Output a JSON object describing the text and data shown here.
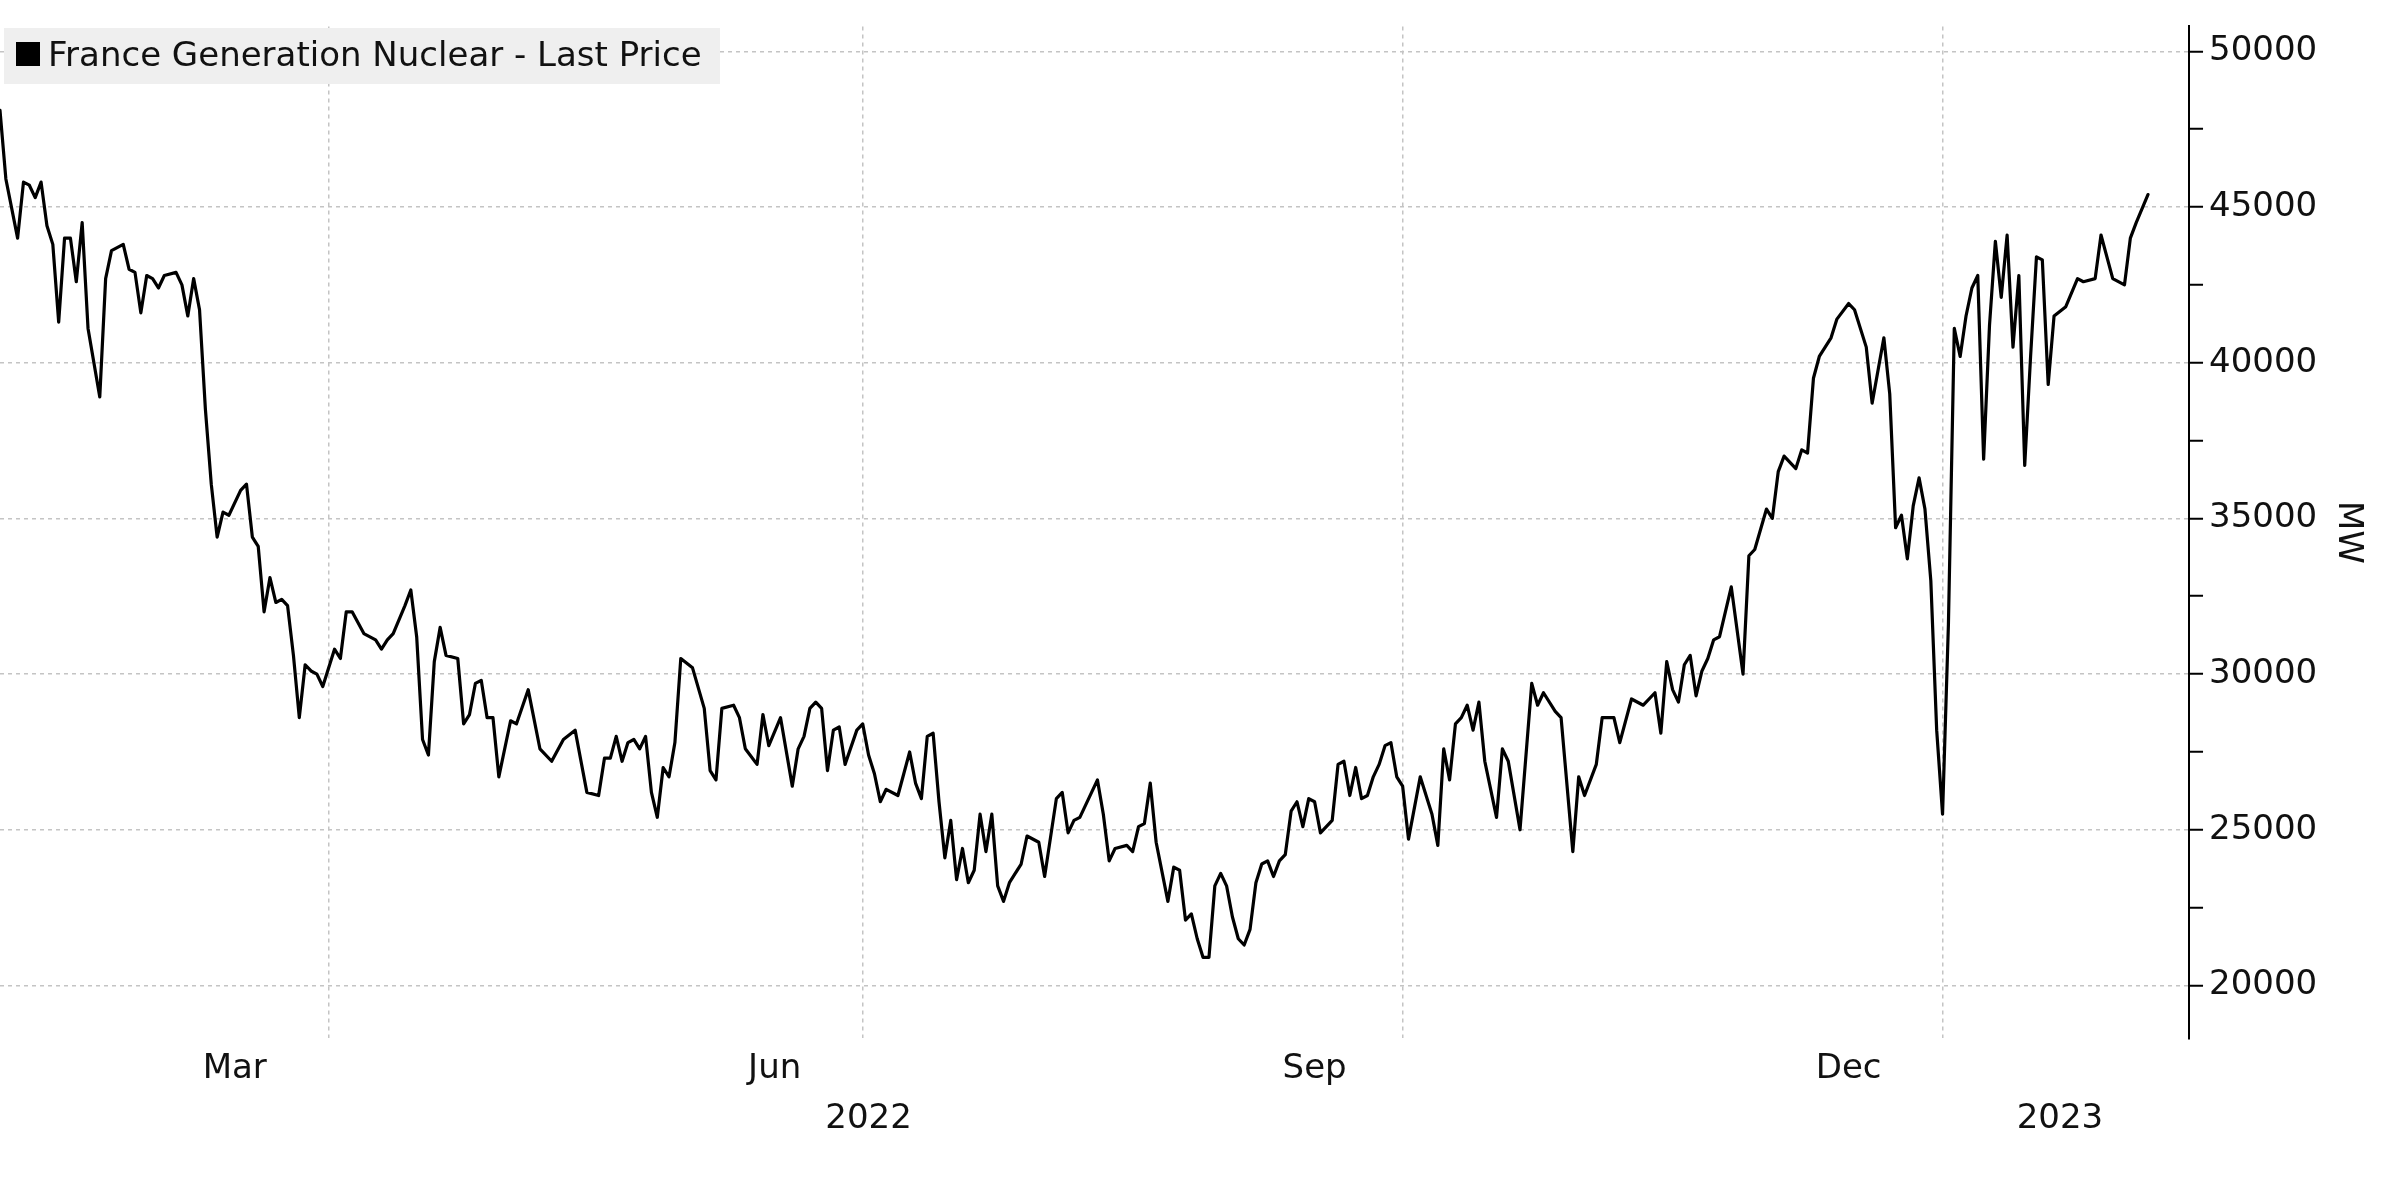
{
  "chart_data": {
    "type": "line",
    "ylabel": "MW",
    "legend": "top left",
    "grid": true,
    "marker": "none",
    "xlim": [
      "2022-02-04",
      "2023-02-12"
    ],
    "xticks": [
      {
        "value": "2022-03-16",
        "label": "Mar"
      },
      {
        "value": "2022-04-01",
        "label": null
      },
      {
        "value": "2022-06-16",
        "label": "Jun"
      },
      {
        "value": "2022-07-01",
        "label": null
      },
      {
        "value": "2022-09-16",
        "label": "Sep"
      },
      {
        "value": "2022-10-01",
        "label": null
      },
      {
        "value": "2022-12-16",
        "label": "Dec"
      },
      {
        "value": "2023-01-01",
        "label": null
      }
    ],
    "x2lim": [
      "2022-02-04",
      "2023-02-12"
    ],
    "x2ticks": [
      {
        "value": "2022-07-02",
        "label": "2022"
      },
      {
        "value": "2023-01-21",
        "label": "2023"
      }
    ],
    "ylim": [
      18300,
      50800
    ],
    "yticks": [
      20000,
      {
        "value": 22500,
        "label": null
      },
      25000,
      {
        "value": 27500,
        "label": null
      },
      30000,
      {
        "value": 32500,
        "label": null
      },
      35000,
      {
        "value": 37500,
        "label": null
      },
      40000,
      {
        "value": 42500,
        "label": null
      },
      45000,
      {
        "value": 47500,
        "label": null
      },
      50000
    ],
    "x": [
      "2022-02-04",
      "2022-02-05",
      "2022-02-07",
      "2022-02-08",
      "2022-02-09",
      "2022-02-10",
      "2022-02-11",
      "2022-02-12",
      "2022-02-13",
      "2022-02-14",
      "2022-02-15",
      "2022-02-16",
      "2022-02-17",
      "2022-02-18",
      "2022-02-19",
      "2022-02-21",
      "2022-02-22",
      "2022-02-23",
      "2022-02-25",
      "2022-02-26",
      "2022-02-27",
      "2022-02-28",
      "2022-03-01",
      "2022-03-02",
      "2022-03-03",
      "2022-03-04",
      "2022-03-06",
      "2022-03-07",
      "2022-03-08",
      "2022-03-09",
      "2022-03-10",
      "2022-03-11",
      "2022-03-12",
      "2022-03-13",
      "2022-03-14",
      "2022-03-15",
      "2022-03-17",
      "2022-03-18",
      "2022-03-19",
      "2022-03-20",
      "2022-03-21",
      "2022-03-22",
      "2022-03-23",
      "2022-03-24",
      "2022-03-25",
      "2022-03-26",
      "2022-03-27",
      "2022-03-28",
      "2022-03-29",
      "2022-03-30",
      "2022-03-31",
      "2022-04-02",
      "2022-04-03",
      "2022-04-04",
      "2022-04-05",
      "2022-04-07",
      "2022-04-09",
      "2022-04-10",
      "2022-04-11",
      "2022-04-12",
      "2022-04-14",
      "2022-04-15",
      "2022-04-16",
      "2022-04-17",
      "2022-04-18",
      "2022-04-19",
      "2022-04-20",
      "2022-04-21",
      "2022-04-23",
      "2022-04-24",
      "2022-04-25",
      "2022-04-26",
      "2022-04-27",
      "2022-04-28",
      "2022-04-29",
      "2022-04-30",
      "2022-05-02",
      "2022-05-03",
      "2022-05-05",
      "2022-05-07",
      "2022-05-09",
      "2022-05-11",
      "2022-05-13",
      "2022-05-15",
      "2022-05-17",
      "2022-05-18",
      "2022-05-19",
      "2022-05-20",
      "2022-05-21",
      "2022-05-22",
      "2022-05-23",
      "2022-05-24",
      "2022-05-25",
      "2022-05-26",
      "2022-05-27",
      "2022-05-28",
      "2022-05-29",
      "2022-05-30",
      "2022-05-31",
      "2022-06-02",
      "2022-06-04",
      "2022-06-05",
      "2022-06-06",
      "2022-06-07",
      "2022-06-09",
      "2022-06-10",
      "2022-06-11",
      "2022-06-13",
      "2022-06-14",
      "2022-06-15",
      "2022-06-17",
      "2022-06-19",
      "2022-06-20",
      "2022-06-21",
      "2022-06-22",
      "2022-06-23",
      "2022-06-24",
      "2022-06-25",
      "2022-06-26",
      "2022-06-27",
      "2022-06-28",
      "2022-06-30",
      "2022-07-01",
      "2022-07-02",
      "2022-07-03",
      "2022-07-04",
      "2022-07-05",
      "2022-07-07",
      "2022-07-08",
      "2022-07-09",
      "2022-07-10",
      "2022-07-11",
      "2022-07-12",
      "2022-07-13",
      "2022-07-14",
      "2022-07-15",
      "2022-07-16",
      "2022-07-17",
      "2022-07-18",
      "2022-07-19",
      "2022-07-20",
      "2022-07-21",
      "2022-07-22",
      "2022-07-23",
      "2022-07-24",
      "2022-07-25",
      "2022-07-26",
      "2022-07-28",
      "2022-07-29",
      "2022-07-31",
      "2022-08-01",
      "2022-08-03",
      "2022-08-04",
      "2022-08-05",
      "2022-08-06",
      "2022-08-07",
      "2022-08-09",
      "2022-08-10",
      "2022-08-11",
      "2022-08-12",
      "2022-08-13",
      "2022-08-15",
      "2022-08-16",
      "2022-08-17",
      "2022-08-18",
      "2022-08-19",
      "2022-08-20",
      "2022-08-22",
      "2022-08-23",
      "2022-08-24",
      "2022-08-25",
      "2022-08-26",
      "2022-08-27",
      "2022-08-28",
      "2022-08-29",
      "2022-08-30",
      "2022-08-31",
      "2022-09-01",
      "2022-09-02",
      "2022-09-03",
      "2022-09-04",
      "2022-09-05",
      "2022-09-06",
      "2022-09-07",
      "2022-09-08",
      "2022-09-09",
      "2022-09-10",
      "2022-09-11",
      "2022-09-12",
      "2022-09-13",
      "2022-09-14",
      "2022-09-15",
      "2022-09-16",
      "2022-09-17",
      "2022-09-19",
      "2022-09-20",
      "2022-09-21",
      "2022-09-22",
      "2022-09-23",
      "2022-09-24",
      "2022-09-25",
      "2022-09-26",
      "2022-09-27",
      "2022-09-28",
      "2022-09-29",
      "2022-09-30",
      "2022-10-01",
      "2022-10-02",
      "2022-10-04",
      "2022-10-06",
      "2022-10-07",
      "2022-10-08",
      "2022-10-09",
      "2022-10-10",
      "2022-10-11",
      "2022-10-12",
      "2022-10-13",
      "2022-10-14",
      "2022-10-15",
      "2022-10-17",
      "2022-10-18",
      "2022-10-19",
      "2022-10-21",
      "2022-10-23",
      "2022-10-24",
      "2022-10-25",
      "2022-10-27",
      "2022-10-28",
      "2022-10-30",
      "2022-10-31",
      "2022-11-01",
      "2022-11-03",
      "2022-11-04",
      "2022-11-06",
      "2022-11-07",
      "2022-11-09",
      "2022-11-11",
      "2022-11-13",
      "2022-11-14",
      "2022-11-15",
      "2022-11-16",
      "2022-11-17",
      "2022-11-18",
      "2022-11-19",
      "2022-11-20",
      "2022-11-21",
      "2022-11-22",
      "2022-11-23",
      "2022-11-24",
      "2022-11-26",
      "2022-11-28",
      "2022-11-29",
      "2022-11-30",
      "2022-12-02",
      "2022-12-03",
      "2022-12-04",
      "2022-12-05",
      "2022-12-07",
      "2022-12-08",
      "2022-12-09",
      "2022-12-10",
      "2022-12-11",
      "2022-12-13",
      "2022-12-14",
      "2022-12-16",
      "2022-12-17",
      "2022-12-19",
      "2022-12-20",
      "2022-12-22",
      "2022-12-23",
      "2022-12-24",
      "2022-12-25",
      "2022-12-26",
      "2022-12-27",
      "2022-12-28",
      "2022-12-29",
      "2022-12-30",
      "2022-12-31",
      "2023-01-01",
      "2023-01-02",
      "2023-01-03",
      "2023-01-04",
      "2023-01-05",
      "2023-01-06",
      "2023-01-07",
      "2023-01-08",
      "2023-01-09",
      "2023-01-10",
      "2023-01-11",
      "2023-01-12",
      "2023-01-13",
      "2023-01-14",
      "2023-01-15",
      "2023-01-16",
      "2023-01-17",
      "2023-01-18",
      "2023-01-19",
      "2023-01-20",
      "2023-01-22",
      "2023-01-24",
      "2023-01-25",
      "2023-01-27",
      "2023-01-28",
      "2023-01-30",
      "2023-02-01",
      "2023-02-02",
      "2023-02-03",
      "2023-02-05"
    ],
    "series": [
      {
        "name": "France Generation Nuclear - Last Price",
        "color": "#000000",
        "values": [
          48100,
          45900,
          44000,
          45800,
          45700,
          45300,
          45800,
          44400,
          43800,
          41300,
          44000,
          44000,
          42600,
          44500,
          41100,
          38900,
          42700,
          43600,
          43800,
          43000,
          42900,
          41600,
          42800,
          42700,
          42400,
          42800,
          42900,
          42500,
          41500,
          42700,
          41700,
          38500,
          36100,
          34400,
          35200,
          35100,
          35900,
          36100,
          34400,
          34100,
          32000,
          33100,
          32300,
          32400,
          32200,
          30600,
          28600,
          30300,
          30100,
          30000,
          29600,
          30800,
          30500,
          32000,
          32000,
          31300,
          31100,
          30800,
          31100,
          31300,
          32200,
          32700,
          31200,
          27900,
          27400,
          30400,
          31500,
          30600,
          30500,
          28400,
          28700,
          29700,
          29800,
          28600,
          28600,
          26700,
          28500,
          28400,
          29500,
          27600,
          27200,
          27900,
          28200,
          26200,
          26100,
          27300,
          27300,
          28000,
          27200,
          27800,
          27900,
          27600,
          28000,
          26200,
          25400,
          27000,
          26700,
          27800,
          30500,
          30200,
          28900,
          26900,
          26600,
          28900,
          29000,
          28600,
          27600,
          27100,
          28700,
          27700,
          28600,
          26400,
          27600,
          28000,
          28900,
          29100,
          28900,
          26900,
          28200,
          28300,
          27100,
          28200,
          28400,
          27400,
          26800,
          25900,
          26300,
          26100,
          26800,
          27500,
          26500,
          26000,
          28000,
          28100,
          25900,
          24100,
          25300,
          23400,
          24400,
          23300,
          23700,
          25500,
          24300,
          25500,
          23200,
          22700,
          23300,
          23900,
          24800,
          24600,
          23500,
          26000,
          26200,
          24900,
          25300,
          25400,
          26200,
          26600,
          25500,
          24000,
          24400,
          24500,
          24300,
          25100,
          25200,
          26500,
          24600,
          22700,
          23800,
          23700,
          22100,
          22300,
          21500,
          20900,
          20900,
          23200,
          23600,
          23200,
          22200,
          21500,
          21300,
          21800,
          23300,
          23900,
          24000,
          23500,
          24000,
          24200,
          25600,
          25900,
          25100,
          26000,
          25900,
          24900,
          25300,
          27100,
          27200,
          26100,
          27000,
          26000,
          26100,
          26700,
          27100,
          27700,
          27800,
          26700,
          26400,
          24700,
          26700,
          25500,
          24500,
          27600,
          26600,
          28400,
          28600,
          29000,
          28200,
          29100,
          27200,
          25400,
          27600,
          27200,
          25000,
          29700,
          29000,
          29400,
          28800,
          28600,
          24300,
          26700,
          26100,
          27100,
          28600,
          28600,
          27800,
          29200,
          29000,
          29400,
          28100,
          30400,
          29500,
          29100,
          30300,
          30600,
          29300,
          30100,
          30500,
          31100,
          31200,
          32800,
          30000,
          33800,
          34000,
          35300,
          35000,
          36500,
          37000,
          36600,
          37200,
          37100,
          39500,
          40200,
          40800,
          41400,
          41900,
          41700,
          40500,
          38700,
          40800,
          39000,
          34700,
          35100,
          33700,
          35400,
          36300,
          35300,
          33000,
          28200,
          25500,
          31600,
          41100,
          40200,
          41500,
          42400,
          42800,
          36900,
          41200,
          43900,
          42100,
          44100,
          40500,
          42800,
          36700,
          40200,
          43400,
          43300,
          39300,
          41500,
          41800,
          42700,
          42600,
          42700,
          44100,
          42700,
          42500,
          44000,
          44500,
          45400
        ]
      }
    ]
  }
}
